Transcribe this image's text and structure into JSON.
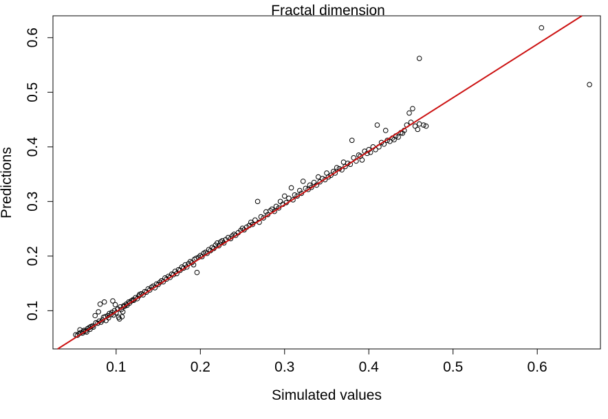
{
  "chart_data": {
    "type": "scatter",
    "title": "Fractal dimension",
    "xlabel": "Simulated values",
    "ylabel": "Predictions",
    "xlim": [
      0.025,
      0.675
    ],
    "ylim": [
      0.03,
      0.64
    ],
    "xticks": [
      0.1,
      0.2,
      0.3,
      0.4,
      0.5,
      0.6
    ],
    "xtick_labels": [
      "0.1",
      "0.2",
      "0.3",
      "0.4",
      "0.5",
      "0.6"
    ],
    "yticks": [
      0.1,
      0.2,
      0.3,
      0.4,
      0.5,
      0.6
    ],
    "ytick_labels": [
      "0.1",
      "0.2",
      "0.3",
      "0.4",
      "0.5",
      "0.6"
    ],
    "grid": false,
    "point_style": "open-circle",
    "point_color": "#000000",
    "fit_line": {
      "intercept": 0.0,
      "slope": 0.98,
      "color": "#cc1111"
    },
    "series": [
      {
        "points": [
          [
            0.052,
            0.056
          ],
          [
            0.054,
            0.055
          ],
          [
            0.056,
            0.058
          ],
          [
            0.057,
            0.065
          ],
          [
            0.058,
            0.06
          ],
          [
            0.06,
            0.059
          ],
          [
            0.061,
            0.062
          ],
          [
            0.062,
            0.064
          ],
          [
            0.064,
            0.063
          ],
          [
            0.065,
            0.061
          ],
          [
            0.066,
            0.067
          ],
          [
            0.068,
            0.069
          ],
          [
            0.069,
            0.066
          ],
          [
            0.07,
            0.071
          ],
          [
            0.072,
            0.072
          ],
          [
            0.073,
            0.07
          ],
          [
            0.075,
            0.091
          ],
          [
            0.076,
            0.078
          ],
          [
            0.078,
            0.077
          ],
          [
            0.079,
            0.098
          ],
          [
            0.08,
            0.081
          ],
          [
            0.081,
            0.112
          ],
          [
            0.082,
            0.079
          ],
          [
            0.084,
            0.083
          ],
          [
            0.085,
            0.088
          ],
          [
            0.086,
            0.116
          ],
          [
            0.087,
            0.089
          ],
          [
            0.088,
            0.082
          ],
          [
            0.09,
            0.091
          ],
          [
            0.091,
            0.087
          ],
          [
            0.092,
            0.095
          ],
          [
            0.094,
            0.093
          ],
          [
            0.095,
            0.097
          ],
          [
            0.096,
            0.118
          ],
          [
            0.097,
            0.092
          ],
          [
            0.098,
            0.1
          ],
          [
            0.099,
            0.111
          ],
          [
            0.1,
            0.096
          ],
          [
            0.102,
            0.103
          ],
          [
            0.103,
            0.088
          ],
          [
            0.104,
            0.085
          ],
          [
            0.105,
            0.107
          ],
          [
            0.106,
            0.102
          ],
          [
            0.107,
            0.089
          ],
          [
            0.108,
            0.098
          ],
          [
            0.109,
            0.109
          ],
          [
            0.11,
            0.108
          ],
          [
            0.112,
            0.112
          ],
          [
            0.113,
            0.11
          ],
          [
            0.115,
            0.116
          ],
          [
            0.116,
            0.114
          ],
          [
            0.118,
            0.118
          ],
          [
            0.12,
            0.12
          ],
          [
            0.121,
            0.119
          ],
          [
            0.123,
            0.124
          ],
          [
            0.125,
            0.122
          ],
          [
            0.127,
            0.127
          ],
          [
            0.128,
            0.13
          ],
          [
            0.13,
            0.131
          ],
          [
            0.132,
            0.129
          ],
          [
            0.134,
            0.135
          ],
          [
            0.136,
            0.134
          ],
          [
            0.138,
            0.14
          ],
          [
            0.14,
            0.138
          ],
          [
            0.142,
            0.143
          ],
          [
            0.144,
            0.145
          ],
          [
            0.146,
            0.142
          ],
          [
            0.148,
            0.149
          ],
          [
            0.15,
            0.148
          ],
          [
            0.152,
            0.152
          ],
          [
            0.154,
            0.155
          ],
          [
            0.156,
            0.153
          ],
          [
            0.158,
            0.16
          ],
          [
            0.16,
            0.158
          ],
          [
            0.162,
            0.163
          ],
          [
            0.164,
            0.161
          ],
          [
            0.166,
            0.167
          ],
          [
            0.168,
            0.166
          ],
          [
            0.17,
            0.172
          ],
          [
            0.172,
            0.168
          ],
          [
            0.174,
            0.175
          ],
          [
            0.176,
            0.174
          ],
          [
            0.178,
            0.18
          ],
          [
            0.18,
            0.178
          ],
          [
            0.182,
            0.184
          ],
          [
            0.184,
            0.18
          ],
          [
            0.186,
            0.186
          ],
          [
            0.188,
            0.19
          ],
          [
            0.19,
            0.188
          ],
          [
            0.192,
            0.184
          ],
          [
            0.193,
            0.194
          ],
          [
            0.195,
            0.196
          ],
          [
            0.196,
            0.17
          ],
          [
            0.198,
            0.198
          ],
          [
            0.2,
            0.201
          ],
          [
            0.202,
            0.199
          ],
          [
            0.204,
            0.205
          ],
          [
            0.206,
            0.207
          ],
          [
            0.208,
            0.205
          ],
          [
            0.21,
            0.212
          ],
          [
            0.212,
            0.21
          ],
          [
            0.214,
            0.216
          ],
          [
            0.216,
            0.214
          ],
          [
            0.218,
            0.22
          ],
          [
            0.22,
            0.224
          ],
          [
            0.222,
            0.219
          ],
          [
            0.224,
            0.226
          ],
          [
            0.226,
            0.228
          ],
          [
            0.228,
            0.224
          ],
          [
            0.23,
            0.23
          ],
          [
            0.233,
            0.234
          ],
          [
            0.236,
            0.232
          ],
          [
            0.238,
            0.237
          ],
          [
            0.24,
            0.24
          ],
          [
            0.242,
            0.238
          ],
          [
            0.245,
            0.243
          ],
          [
            0.248,
            0.247
          ],
          [
            0.25,
            0.251
          ],
          [
            0.252,
            0.248
          ],
          [
            0.255,
            0.253
          ],
          [
            0.258,
            0.256
          ],
          [
            0.26,
            0.262
          ],
          [
            0.262,
            0.258
          ],
          [
            0.265,
            0.266
          ],
          [
            0.268,
            0.3
          ],
          [
            0.27,
            0.262
          ],
          [
            0.272,
            0.272
          ],
          [
            0.275,
            0.27
          ],
          [
            0.278,
            0.281
          ],
          [
            0.28,
            0.276
          ],
          [
            0.283,
            0.283
          ],
          [
            0.285,
            0.286
          ],
          [
            0.288,
            0.282
          ],
          [
            0.29,
            0.291
          ],
          [
            0.293,
            0.288
          ],
          [
            0.295,
            0.3
          ],
          [
            0.298,
            0.295
          ],
          [
            0.3,
            0.31
          ],
          [
            0.302,
            0.298
          ],
          [
            0.305,
            0.306
          ],
          [
            0.308,
            0.325
          ],
          [
            0.31,
            0.303
          ],
          [
            0.312,
            0.312
          ],
          [
            0.315,
            0.31
          ],
          [
            0.318,
            0.32
          ],
          [
            0.32,
            0.315
          ],
          [
            0.322,
            0.337
          ],
          [
            0.325,
            0.324
          ],
          [
            0.328,
            0.322
          ],
          [
            0.33,
            0.33
          ],
          [
            0.332,
            0.326
          ],
          [
            0.335,
            0.335
          ],
          [
            0.338,
            0.33
          ],
          [
            0.34,
            0.345
          ],
          [
            0.342,
            0.336
          ],
          [
            0.345,
            0.342
          ],
          [
            0.348,
            0.34
          ],
          [
            0.35,
            0.352
          ],
          [
            0.352,
            0.345
          ],
          [
            0.355,
            0.348
          ],
          [
            0.358,
            0.355
          ],
          [
            0.36,
            0.352
          ],
          [
            0.362,
            0.362
          ],
          [
            0.365,
            0.36
          ],
          [
            0.368,
            0.358
          ],
          [
            0.37,
            0.372
          ],
          [
            0.372,
            0.364
          ],
          [
            0.375,
            0.37
          ],
          [
            0.378,
            0.368
          ],
          [
            0.38,
            0.412
          ],
          [
            0.382,
            0.38
          ],
          [
            0.385,
            0.374
          ],
          [
            0.388,
            0.385
          ],
          [
            0.39,
            0.383
          ],
          [
            0.392,
            0.376
          ],
          [
            0.395,
            0.392
          ],
          [
            0.398,
            0.388
          ],
          [
            0.4,
            0.395
          ],
          [
            0.402,
            0.39
          ],
          [
            0.405,
            0.4
          ],
          [
            0.408,
            0.395
          ],
          [
            0.41,
            0.44
          ],
          [
            0.412,
            0.4
          ],
          [
            0.415,
            0.408
          ],
          [
            0.418,
            0.405
          ],
          [
            0.42,
            0.43
          ],
          [
            0.422,
            0.412
          ],
          [
            0.425,
            0.41
          ],
          [
            0.428,
            0.416
          ],
          [
            0.43,
            0.413
          ],
          [
            0.432,
            0.42
          ],
          [
            0.435,
            0.418
          ],
          [
            0.438,
            0.426
          ],
          [
            0.44,
            0.425
          ],
          [
            0.442,
            0.43
          ],
          [
            0.445,
            0.44
          ],
          [
            0.448,
            0.462
          ],
          [
            0.45,
            0.445
          ],
          [
            0.452,
            0.47
          ],
          [
            0.455,
            0.438
          ],
          [
            0.458,
            0.432
          ],
          [
            0.46,
            0.442
          ],
          [
            0.465,
            0.44
          ],
          [
            0.468,
            0.438
          ],
          [
            0.46,
            0.562
          ],
          [
            0.605,
            0.618
          ],
          [
            0.662,
            0.514
          ]
        ]
      }
    ]
  }
}
